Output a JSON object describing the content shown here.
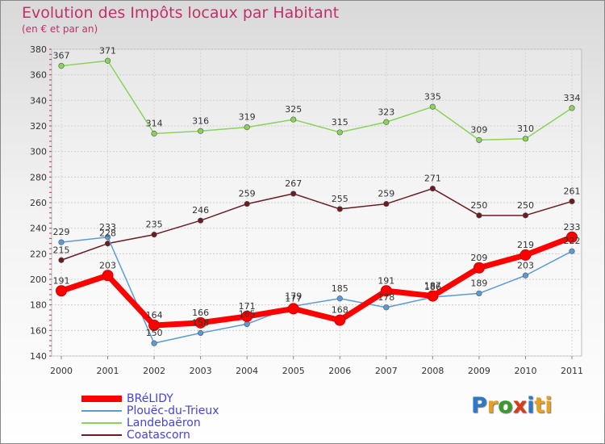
{
  "chart_data": {
    "type": "line",
    "title": "Evolution des Impôts locaux par Habitant",
    "subtitle": "(en € et par an)",
    "x": [
      "2000",
      "2001",
      "2002",
      "2003",
      "2004",
      "2005",
      "2006",
      "2007",
      "2008",
      "2009",
      "2010",
      "2011"
    ],
    "yticks": [
      "140",
      "160",
      "180",
      "200",
      "220",
      "240",
      "260",
      "280",
      "300",
      "320",
      "340",
      "360",
      "380"
    ],
    "ylim": [
      140,
      380
    ],
    "grid": "horizontal",
    "legend_position": "bottom-left",
    "series": [
      {
        "name": "BRéLIDY",
        "color": "#ff0000",
        "values": [
          191,
          203,
          164,
          166,
          171,
          177,
          168,
          191,
          187,
          209,
          219,
          233
        ]
      },
      {
        "name": "Plouëc-du-Trieux",
        "color": "#5b9bd5",
        "values": [
          229,
          233,
          150,
          158,
          165,
          179,
          185,
          178,
          186,
          189,
          203,
          222
        ]
      },
      {
        "name": "Landebaëron",
        "color": "#88d45a",
        "values": [
          367,
          371,
          314,
          316,
          319,
          325,
          315,
          323,
          335,
          309,
          310,
          334
        ]
      },
      {
        "name": "Coatascorn",
        "color": "#6b1c22",
        "values": [
          215,
          228,
          235,
          246,
          259,
          267,
          255,
          259,
          271,
          250,
          250,
          261
        ]
      }
    ]
  },
  "logo": {
    "text": "Proxiti",
    "letters": [
      "P",
      "r",
      "o",
      "x",
      "i",
      "ti"
    ]
  }
}
